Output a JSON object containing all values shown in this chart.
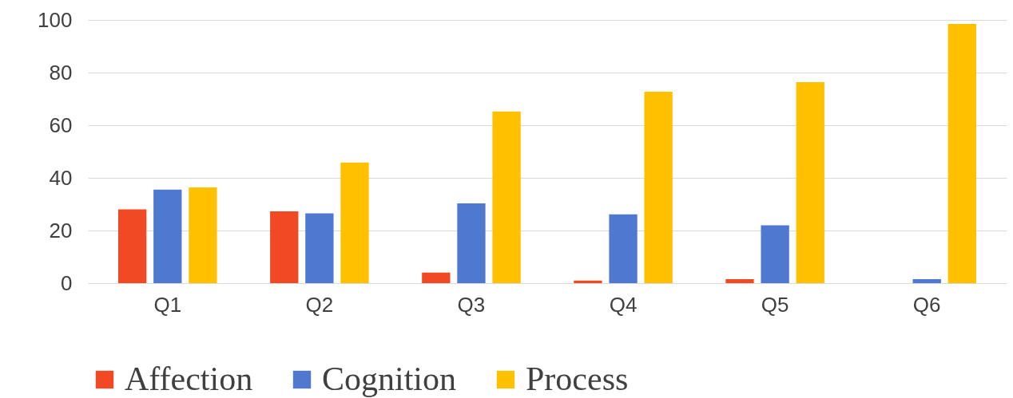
{
  "chart_data": {
    "type": "bar",
    "categories": [
      "Q1",
      "Q2",
      "Q3",
      "Q4",
      "Q5",
      "Q6"
    ],
    "series": [
      {
        "name": "Affection",
        "color": "#f04923",
        "values": [
          28,
          27.3,
          4,
          1,
          1.5,
          0
        ]
      },
      {
        "name": "Cognition",
        "color": "#4f78d0",
        "values": [
          35.5,
          26.5,
          30.3,
          26.1,
          22,
          1.5
        ]
      },
      {
        "name": "Process",
        "color": "#ffc000",
        "values": [
          36.4,
          45.8,
          65.2,
          72.7,
          76.4,
          98.5
        ]
      }
    ],
    "ylim": [
      0,
      100
    ],
    "yticks": [
      0,
      20,
      40,
      60,
      80,
      100
    ],
    "grid": "y",
    "legend": "bottom"
  }
}
